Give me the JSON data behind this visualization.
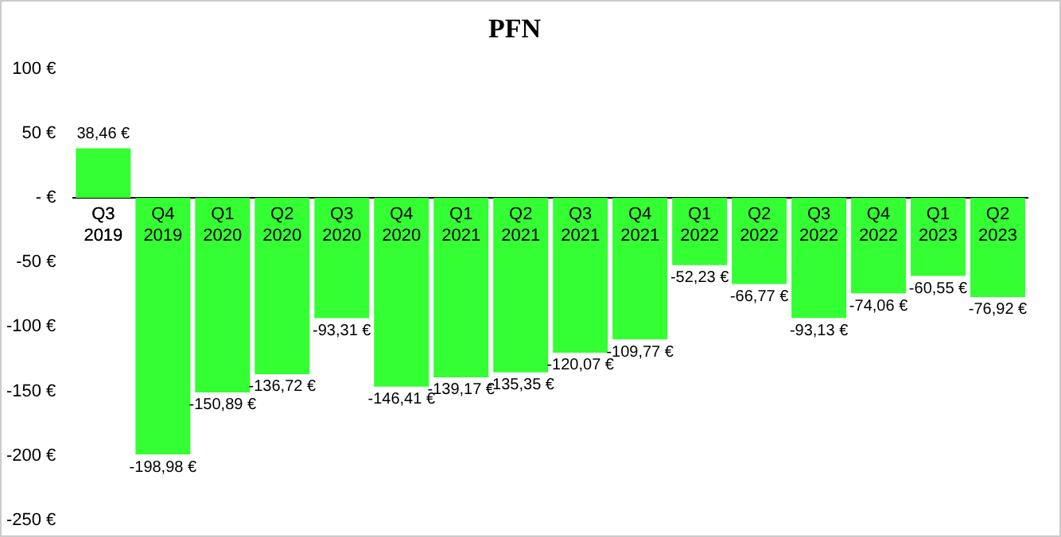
{
  "chart_data": {
    "type": "bar",
    "title": "PFN",
    "categories": [
      "Q3 2019",
      "Q4 2019",
      "Q1 2020",
      "Q2 2020",
      "Q3 2020",
      "Q4 2020",
      "Q1 2021",
      "Q2 2021",
      "Q3 2021",
      "Q4 2021",
      "Q1 2022",
      "Q2 2022",
      "Q3 2022",
      "Q4 2022",
      "Q1 2023",
      "Q2 2023"
    ],
    "values": [
      38.46,
      -198.98,
      -150.89,
      -136.72,
      -93.31,
      -146.41,
      -139.17,
      -135.35,
      -120.07,
      -109.77,
      -52.23,
      -66.77,
      -93.13,
      -74.06,
      -60.55,
      -76.92
    ],
    "value_labels": [
      "38,46 €",
      "-198,98 €",
      "-150,89 €",
      "-136,72 €",
      "-93,31 €",
      "-146,41 €",
      "-139,17 €",
      "-135,35 €",
      "-120,07 €",
      "-109,77 €",
      "-52,23 €",
      "-66,77 €",
      "-93,13 €",
      "-74,06 €",
      "-60,55 €",
      "-76,92 €"
    ],
    "color": "#33ff33",
    "ylim": [
      -250,
      100
    ],
    "yticks": [
      {
        "value": 100,
        "label": "100 €"
      },
      {
        "value": 50,
        "label": "50 €"
      },
      {
        "value": 0,
        "label": "- €"
      },
      {
        "value": -50,
        "label": "-50 €"
      },
      {
        "value": -100,
        "label": "-100 €"
      },
      {
        "value": -150,
        "label": "-150 €"
      },
      {
        "value": -200,
        "label": "-200 €"
      },
      {
        "value": -250,
        "label": "-250 €"
      }
    ],
    "grid": false,
    "legend": false
  }
}
